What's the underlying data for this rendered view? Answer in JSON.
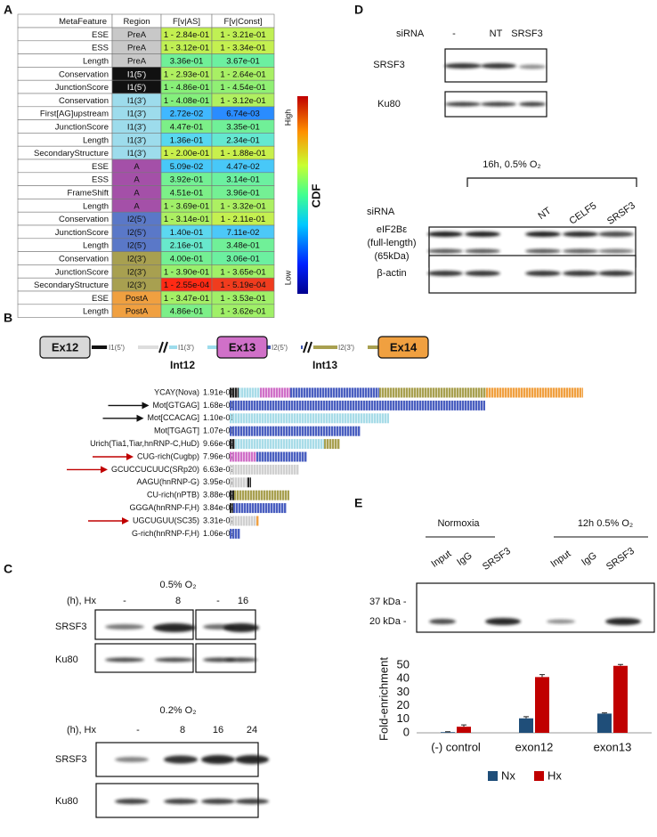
{
  "panel_a": {
    "label": "A",
    "table": {
      "header": [
        "MetaFeature",
        "Region",
        "F[v|AS]",
        "F[v|Const]"
      ],
      "rows": [
        [
          "ESE",
          "PreA",
          "1 - 2.84e-01",
          "1 - 3.21e-01"
        ],
        [
          "ESS",
          "PreA",
          "1 - 3.12e-01",
          "1 - 3.34e-01"
        ],
        [
          "Length",
          "PreA",
          "3.36e-01",
          "3.67e-01"
        ],
        [
          "Conservation",
          "I1(5')",
          "1 - 2.93e-01",
          "1 - 2.64e-01"
        ],
        [
          "JunctionScore",
          "I1(5')",
          "1 - 4.86e-01",
          "1 - 4.54e-01"
        ],
        [
          "Conservation",
          "I1(3')",
          "1 - 4.08e-01",
          "1 - 3.12e-01"
        ],
        [
          "First[AG]upstream",
          "I1(3')",
          "2.72e-02",
          "6.74e-03"
        ],
        [
          "JunctionScore",
          "I1(3')",
          "4.47e-01",
          "3.35e-01"
        ],
        [
          "Length",
          "I1(3')",
          "1.36e-01",
          "2.34e-01"
        ],
        [
          "SecondaryStructure",
          "I1(3')",
          "1 - 2.00e-01",
          "1 - 1.88e-01"
        ],
        [
          "ESE",
          "A",
          "5.09e-02",
          "4.47e-02"
        ],
        [
          "ESS",
          "A",
          "3.92e-01",
          "3.14e-01"
        ],
        [
          "FrameShift",
          "A",
          "4.51e-01",
          "3.96e-01"
        ],
        [
          "Length",
          "A",
          "1 - 3.69e-01",
          "1 - 3.32e-01"
        ],
        [
          "Conservation",
          "I2(5')",
          "1 - 3.14e-01",
          "1 - 2.11e-01"
        ],
        [
          "JunctionScore",
          "I2(5')",
          "1.40e-01",
          "7.11e-02"
        ],
        [
          "Length",
          "I2(5')",
          "2.16e-01",
          "3.48e-01"
        ],
        [
          "Conservation",
          "I2(3')",
          "4.00e-01",
          "3.06e-01"
        ],
        [
          "JunctionScore",
          "I2(3')",
          "1 - 3.90e-01",
          "1 - 3.65e-01"
        ],
        [
          "SecondaryStructure",
          "I2(3')",
          "1 - 2.55e-04",
          "1 - 5.19e-04"
        ],
        [
          "ESE",
          "PostA",
          "1 - 3.47e-01",
          "1 - 3.53e-01"
        ],
        [
          "Length",
          "PostA",
          "4.86e-01",
          "1 - 3.62e-01"
        ]
      ],
      "cell_colors": [
        [
          "#c8c8c8",
          "#c4f050",
          "#c0f054"
        ],
        [
          "#c8c8c8",
          "#c0f054",
          "#c4f050"
        ],
        [
          "#c8c8c8",
          "#70f098",
          "#6cf0a0"
        ],
        [
          "#111111",
          "#b0f060",
          "#a8f064"
        ],
        [
          "#111111",
          "#88f078",
          "#90f074"
        ],
        [
          "#9ddcec",
          "#84f07c",
          "#b0f060"
        ],
        [
          "#9ddcec",
          "#40b8ff",
          "#2a8cff"
        ],
        [
          "#9ddcec",
          "#7cf088",
          "#70f098"
        ],
        [
          "#9ddcec",
          "#58d8f0",
          "#64e8d0"
        ],
        [
          "#9ddcec",
          "#c8f04c",
          "#c8f04c"
        ],
        [
          "#a450a8",
          "#48c8f8",
          "#48c8f8"
        ],
        [
          "#a450a8",
          "#74f094",
          "#6cf0a0"
        ],
        [
          "#a450a8",
          "#7cf088",
          "#74f094"
        ],
        [
          "#a450a8",
          "#a0f068",
          "#acf062"
        ],
        [
          "#5a78c8",
          "#acf062",
          "#c4f050"
        ],
        [
          "#5a78c8",
          "#5cd8f0",
          "#4cc8f8"
        ],
        [
          "#5a78c8",
          "#68e8cc",
          "#70f098"
        ],
        [
          "#a8a050",
          "#74f094",
          "#6cf0a0"
        ],
        [
          "#a8a050",
          "#98f06c",
          "#a0f068"
        ],
        [
          "#a8a050",
          "#ff2a14",
          "#f03c1e"
        ],
        [
          "#f0a040",
          "#a4f066",
          "#a0f068"
        ],
        [
          "#f0a040",
          "#7cf088",
          "#a0f068"
        ]
      ]
    },
    "colorbar": {
      "title": "CDF",
      "high": "High",
      "low": "Low"
    }
  },
  "panel_b": {
    "label": "B",
    "exons": [
      "Ex12",
      "Ex13",
      "Ex14"
    ],
    "regions": [
      "I1(5')",
      "I1(3')",
      "I2(5')",
      "I2(3')"
    ],
    "introns": [
      "Int12",
      "Int13"
    ],
    "motifs": [
      {
        "name": "YCAY(Nova)",
        "value": "1.91e-01"
      },
      {
        "name": "Mot[GTGAG]",
        "value": "1.68e-01",
        "arrow": "#111111"
      },
      {
        "name": "Mot[CCACAG]",
        "value": "1.10e-01",
        "arrow": "#111111"
      },
      {
        "name": "Mot[TGAGT]",
        "value": "1.07e-01"
      },
      {
        "name": "Urich(Tia1,Tiar,hnRNP-C,HuD)",
        "value": "9.66e-02"
      },
      {
        "name": "CUG-rich(Cugbp)",
        "value": "7.96e-02",
        "arrow": "#c00000"
      },
      {
        "name": "GCUCCUCUUC(SRp20)",
        "value": "6.63e-02",
        "arrow": "#c00000"
      },
      {
        "name": "AAGU(hnRNP-G)",
        "value": "3.95e-02"
      },
      {
        "name": "CU-rich(nPTB)",
        "value": "3.88e-02"
      },
      {
        "name": "GGGA(hnRNP-F,H)",
        "value": "3.84e-02"
      },
      {
        "name": "UGCUGUU(SC35)",
        "value": "3.31e-02",
        "arrow": "#c00000"
      },
      {
        "name": "G-rich(hnRNP-F,H)",
        "value": "1.06e-02"
      }
    ]
  },
  "panel_c": {
    "label": "C",
    "top": {
      "condition": "0.5% O₂",
      "row_label": "(h), Hx",
      "lanes": [
        "-",
        "8",
        "-",
        "16"
      ],
      "blots": [
        "SRSF3",
        "Ku80"
      ]
    },
    "bottom": {
      "condition": "0.2% O₂",
      "row_label": "(h), Hx",
      "lanes": [
        "-",
        "8",
        "16",
        "24"
      ],
      "blots": [
        "SRSF3",
        "Ku80"
      ]
    }
  },
  "panel_d": {
    "label": "D",
    "top": {
      "row_label": "siRNA",
      "lanes": [
        "-",
        "NT",
        "SRSF3"
      ],
      "blots": [
        "SRSF3",
        "Ku80"
      ]
    },
    "condition": "16h, 0.5% O₂",
    "bottom": {
      "row_label": "siRNA",
      "lanes": [
        "NT",
        "CELF5",
        "SRSF3"
      ],
      "blots": [
        [
          "eIF2Bε",
          "(full-length)",
          "(65kDa)"
        ],
        "β-actin"
      ]
    }
  },
  "panel_e": {
    "label": "E",
    "groups": [
      "Normoxia",
      "12h 0.5% O₂"
    ],
    "lanes": [
      "Input",
      "IgG",
      "SRSF3",
      "Input",
      "IgG",
      "SRSF3"
    ],
    "markers": [
      "37 kDa -",
      "20 kDa -"
    ]
  },
  "chart_data": {
    "type": "bar",
    "ylabel": "Fold-enrichment",
    "categories": [
      "(-) control",
      "exon12",
      "exon13"
    ],
    "series": [
      {
        "name": "Nx",
        "color": "#1f4e79",
        "values": [
          0.5,
          10.7,
          14.2
        ],
        "errors": [
          0.3,
          1.2,
          0.5
        ]
      },
      {
        "name": "Hx",
        "color": "#c00000",
        "values": [
          4.5,
          41.2,
          49.5
        ],
        "errors": [
          1.3,
          1.8,
          1.0
        ]
      }
    ],
    "ylim": [
      0,
      50
    ],
    "yticks": [
      0,
      10,
      20,
      30,
      40,
      50
    ],
    "grid": false,
    "legend": "bottom"
  }
}
